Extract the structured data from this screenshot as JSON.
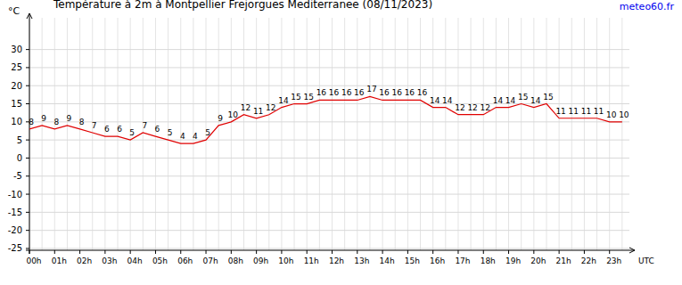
{
  "chart_data": {
    "type": "line",
    "title": "Température à 2m à Montpellier Frejorgues Mediterranee (08/11/2023)",
    "source": "meteo60.fr",
    "y_label": "°C",
    "x_label": "UTC",
    "x": [
      0,
      0.5,
      1,
      1.5,
      2,
      2.5,
      3,
      3.5,
      4,
      4.5,
      5,
      5.5,
      6,
      6.5,
      7,
      7.5,
      8,
      8.5,
      9,
      9.5,
      10,
      10.5,
      11,
      11.5,
      12,
      12.5,
      13,
      13.5,
      14,
      14.5,
      15,
      15.5,
      16,
      16.5,
      17,
      17.5,
      18,
      18.5,
      19,
      19.5,
      20,
      20.5,
      21,
      21.5,
      22,
      22.5,
      23,
      23.5
    ],
    "series": [
      {
        "name": "Température",
        "color": "#e00000",
        "values": [
          8,
          9,
          8,
          9,
          8,
          7,
          6,
          6,
          5,
          7,
          6,
          5,
          4,
          4,
          5,
          9,
          10,
          12,
          11,
          12,
          14,
          15,
          15,
          16,
          16,
          16,
          16,
          17,
          16,
          16,
          16,
          16,
          14,
          14,
          12,
          12,
          12,
          14,
          14,
          15,
          14,
          15,
          11,
          11,
          11,
          11,
          10,
          10
        ]
      }
    ],
    "xlim": [
      0,
      24
    ],
    "xticks": [
      {
        "value": 0,
        "label": "00h"
      },
      {
        "value": 1,
        "label": "01h"
      },
      {
        "value": 2,
        "label": "02h"
      },
      {
        "value": 3,
        "label": "03h"
      },
      {
        "value": 4,
        "label": "04h"
      },
      {
        "value": 5,
        "label": "05h"
      },
      {
        "value": 6,
        "label": "06h"
      },
      {
        "value": 7,
        "label": "07h"
      },
      {
        "value": 8,
        "label": "08h"
      },
      {
        "value": 9,
        "label": "09h"
      },
      {
        "value": 10,
        "label": "10h"
      },
      {
        "value": 11,
        "label": "11h"
      },
      {
        "value": 12,
        "label": "12h"
      },
      {
        "value": 13,
        "label": "13h"
      },
      {
        "value": 14,
        "label": "14h"
      },
      {
        "value": 15,
        "label": "15h"
      },
      {
        "value": 16,
        "label": "16h"
      },
      {
        "value": 17,
        "label": "17h"
      },
      {
        "value": 18,
        "label": "18h"
      },
      {
        "value": 19,
        "label": "19h"
      },
      {
        "value": 20,
        "label": "20h"
      },
      {
        "value": 21,
        "label": "21h"
      },
      {
        "value": 22,
        "label": "22h"
      },
      {
        "value": 23,
        "label": "23h"
      }
    ],
    "ylim": [
      -25.5,
      40
    ],
    "yticks": [
      -25,
      -20,
      -15,
      -10,
      -5,
      0,
      5,
      10,
      15,
      20,
      25,
      30
    ],
    "grid": true,
    "data_labels": true
  }
}
